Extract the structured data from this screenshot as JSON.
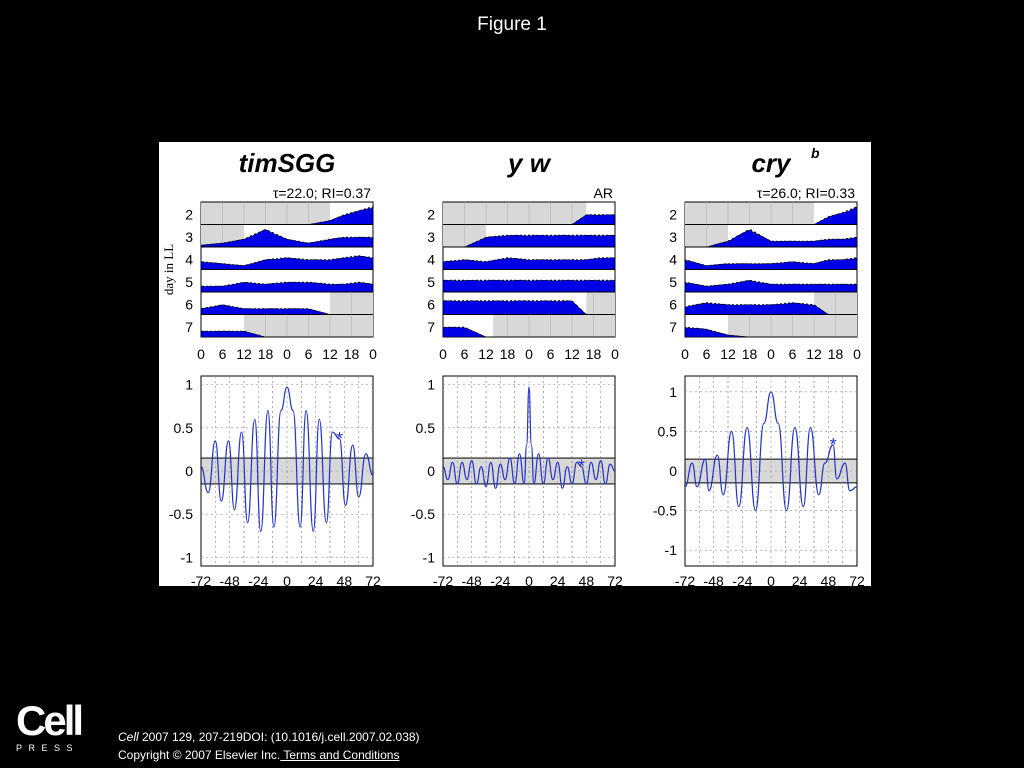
{
  "slide": {
    "title": "Figure 1",
    "citation_journal": "Cell",
    "citation_rest": " 2007 129, 207-219DOI: (10.1016/j.cell.2007.02.038)",
    "copyright": "Copyright © 2007 Elsevier Inc.",
    "terms_link": " Terms and Conditions",
    "logo_word": "Cell",
    "logo_press": "PRESS"
  },
  "chart_data": [
    {
      "type": "area",
      "panel": "timSGG actogram",
      "title": "timSGG",
      "annotation": "τ=22.0; RI=0.37",
      "ylabel": "day in LL",
      "rows": [
        "2",
        "3",
        "4",
        "5",
        "6",
        "7"
      ],
      "x_ticks": [
        "0",
        "6",
        "12",
        "18",
        "0",
        "6",
        "12",
        "18",
        "0"
      ],
      "shading_lit_start": [
        12,
        0,
        null,
        null,
        null,
        0
      ],
      "shading_lit_end": [
        48,
        10,
        null,
        null,
        null,
        12
      ],
      "shading_dark_start": [
        null,
        null,
        null,
        null,
        36,
        12
      ],
      "shading_dark_end": [
        null,
        null,
        null,
        null,
        48,
        48
      ],
      "series": [
        {
          "name": "activity",
          "x": [
            0,
            6,
            12,
            18,
            24,
            30,
            36,
            40,
            44,
            48
          ],
          "y_rows": [
            [
              0,
              0,
              0,
              0,
              0,
              0,
              0.2,
              0.5,
              0.7,
              0.9
            ],
            [
              0.1,
              0.2,
              0.4,
              0.9,
              0.4,
              0.2,
              0.4,
              0.5,
              0.5,
              0.5
            ],
            [
              0.4,
              0.3,
              0.2,
              0.5,
              0.6,
              0.5,
              0.5,
              0.6,
              0.7,
              0.6
            ],
            [
              0.3,
              0.3,
              0.5,
              0.4,
              0.5,
              0.5,
              0.4,
              0.4,
              0.5,
              0.4
            ],
            [
              0.3,
              0.5,
              0.3,
              0.3,
              0.3,
              0.3,
              0,
              0,
              0,
              0
            ],
            [
              0.3,
              0.3,
              0.3,
              0,
              0,
              0,
              0,
              0,
              0,
              0
            ]
          ]
        }
      ]
    },
    {
      "type": "area",
      "panel": "y w actogram",
      "title": "y w",
      "annotation": "AR",
      "rows": [
        "2",
        "3",
        "4",
        "5",
        "6",
        "7"
      ],
      "x_ticks": [
        "0",
        "6",
        "12",
        "18",
        "0",
        "6",
        "12",
        "18",
        "0"
      ],
      "series": [
        {
          "name": "activity",
          "x": [
            0,
            6,
            12,
            18,
            24,
            30,
            36,
            40,
            44,
            48
          ],
          "y_rows": [
            [
              0,
              0,
              0,
              0,
              0,
              0,
              0,
              0.5,
              0.5,
              0.5
            ],
            [
              0,
              0,
              0.5,
              0.6,
              0.6,
              0.6,
              0.6,
              0.6,
              0.6,
              0.6
            ],
            [
              0.4,
              0.5,
              0.4,
              0.6,
              0.5,
              0.5,
              0.5,
              0.5,
              0.6,
              0.6
            ],
            [
              0.6,
              0.6,
              0.6,
              0.6,
              0.6,
              0.6,
              0.6,
              0.6,
              0.6,
              0.6
            ],
            [
              0.7,
              0.7,
              0.7,
              0.7,
              0.7,
              0.7,
              0.7,
              0,
              0,
              0
            ],
            [
              0.5,
              0.5,
              0,
              0,
              0,
              0,
              0,
              0,
              0,
              0
            ]
          ]
        }
      ]
    },
    {
      "type": "area",
      "panel": "cry b actogram",
      "title": "cry",
      "title_superscript": "b",
      "annotation": "τ=26.0; RI=0.33",
      "rows": [
        "2",
        "3",
        "4",
        "5",
        "6",
        "7"
      ],
      "x_ticks": [
        "0",
        "6",
        "12",
        "18",
        "0",
        "6",
        "12",
        "18",
        "0"
      ],
      "series": [
        {
          "name": "activity",
          "x": [
            0,
            6,
            12,
            18,
            24,
            30,
            36,
            40,
            44,
            48
          ],
          "y_rows": [
            [
              0,
              0,
              0,
              0,
              0,
              0,
              0,
              0.4,
              0.6,
              0.9
            ],
            [
              0,
              0,
              0.3,
              0.9,
              0.3,
              0.3,
              0.3,
              0.4,
              0.4,
              0.5
            ],
            [
              0.5,
              0.2,
              0.3,
              0.3,
              0.3,
              0.4,
              0.3,
              0.5,
              0.5,
              0.6
            ],
            [
              0.5,
              0.3,
              0.4,
              0.6,
              0.4,
              0.4,
              0.4,
              0.4,
              0.4,
              0.4
            ],
            [
              0.4,
              0.6,
              0.5,
              0.5,
              0.5,
              0.6,
              0.5,
              0,
              0,
              0
            ],
            [
              0.5,
              0.4,
              0.1,
              0,
              0,
              0,
              0,
              0,
              0,
              0
            ]
          ]
        }
      ]
    },
    {
      "type": "line",
      "panel": "timSGG autocorrelation",
      "x_ticks": [
        "-72",
        "-48",
        "-24",
        "0",
        "24",
        "48",
        "72"
      ],
      "y_ticks": [
        "1",
        "0.5",
        "0",
        "-0.5",
        "-1"
      ],
      "xlim": [
        -72,
        72
      ],
      "ylim": [
        -1.1,
        1.1
      ],
      "band": [
        -0.15,
        0.15
      ],
      "marker": {
        "x": 44,
        "y": 0.37,
        "symbol": "*"
      },
      "series": [
        {
          "name": "autocorrelation",
          "x": [
            -72,
            -66,
            -60,
            -55,
            -49,
            -44,
            -38,
            -33,
            -27,
            -22,
            -16,
            -11,
            -5,
            0,
            5,
            11,
            16,
            22,
            27,
            33,
            38,
            44,
            49,
            55,
            60,
            66,
            72
          ],
          "y": [
            0.05,
            -0.25,
            0.35,
            -0.35,
            0.35,
            -0.45,
            0.45,
            -0.6,
            0.6,
            -0.7,
            0.7,
            -0.65,
            0.7,
            0.97,
            0.7,
            -0.65,
            0.7,
            -0.7,
            0.6,
            -0.6,
            0.45,
            0.37,
            -0.4,
            0.3,
            -0.3,
            0.2,
            -0.05
          ]
        }
      ]
    },
    {
      "type": "line",
      "panel": "y w autocorrelation",
      "x_ticks": [
        "-72",
        "-48",
        "-24",
        "0",
        "24",
        "48",
        "72"
      ],
      "y_ticks": [
        "1",
        "0.5",
        "0",
        "-0.5",
        "-1"
      ],
      "xlim": [
        -72,
        72
      ],
      "ylim": [
        -1.1,
        1.1
      ],
      "band": [
        -0.15,
        0.15
      ],
      "marker": {
        "x": 44,
        "y": 0.05,
        "symbol": "*"
      },
      "series": [
        {
          "name": "autocorrelation",
          "x": [
            -72,
            -68,
            -64,
            -60,
            -56,
            -52,
            -48,
            -44,
            -40,
            -36,
            -32,
            -28,
            -24,
            -20,
            -16,
            -12,
            -8,
            -4,
            -2,
            0,
            2,
            4,
            8,
            12,
            16,
            20,
            24,
            28,
            32,
            36,
            40,
            44,
            48,
            52,
            56,
            60,
            64,
            68,
            72
          ],
          "y": [
            0.05,
            -0.1,
            0.1,
            -0.15,
            0.1,
            -0.1,
            0.12,
            -0.15,
            0.05,
            -0.18,
            0.1,
            -0.2,
            0.08,
            -0.1,
            0.15,
            -0.15,
            0.2,
            -0.15,
            0.3,
            0.97,
            0.3,
            -0.15,
            0.2,
            -0.15,
            0.15,
            -0.1,
            0.1,
            -0.2,
            0.05,
            -0.15,
            0.1,
            0.05,
            -0.15,
            0.1,
            -0.1,
            0.12,
            -0.15,
            0.08,
            0.0
          ]
        }
      ]
    },
    {
      "type": "line",
      "panel": "cry b autocorrelation",
      "x_ticks": [
        "-72",
        "-48",
        "-24",
        "0",
        "24",
        "48",
        "72"
      ],
      "y_ticks": [
        "1",
        "0.5",
        "0",
        "-0.5",
        "-1"
      ],
      "xlim": [
        -72,
        72
      ],
      "ylim": [
        -1.2,
        1.2
      ],
      "band": [
        -0.15,
        0.15
      ],
      "marker": {
        "x": 52,
        "y": 0.33,
        "symbol": "*"
      },
      "series": [
        {
          "name": "autocorrelation",
          "x": [
            -72,
            -66,
            -62,
            -55,
            -52,
            -45,
            -40,
            -33,
            -27,
            -20,
            -13,
            -6,
            0,
            6,
            13,
            20,
            27,
            33,
            40,
            45,
            52,
            55,
            62,
            66,
            72
          ],
          "y": [
            -0.2,
            0.1,
            -0.2,
            0.15,
            -0.25,
            0.2,
            -0.3,
            0.5,
            -0.45,
            0.55,
            -0.5,
            0.6,
            1.0,
            0.6,
            -0.5,
            0.55,
            -0.45,
            0.55,
            -0.3,
            0.1,
            0.33,
            -0.1,
            0.1,
            -0.25,
            -0.2
          ]
        }
      ]
    }
  ]
}
